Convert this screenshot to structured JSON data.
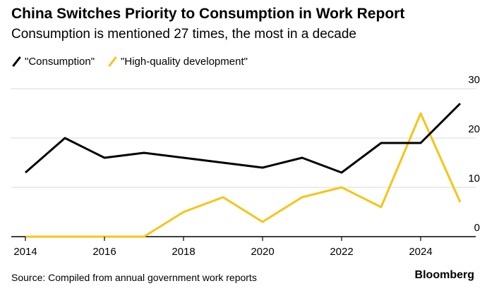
{
  "header": {
    "title": "China Switches Priority to Consumption in Work Report",
    "subtitle": "Consumption is mentioned 27 times, the most in a decade"
  },
  "footer": {
    "source": "Source: Compiled from annual government work reports",
    "brand": "Bloomberg"
  },
  "colors": {
    "series_consumption": "#000000",
    "series_hqd": "#f5c518",
    "grid": "#d9d9d9",
    "axis": "#000000"
  },
  "chart_data": {
    "type": "line",
    "title": "China Switches Priority to Consumption in Work Report",
    "subtitle": "Consumption is mentioned 27 times, the most in a decade",
    "xlabel": "",
    "ylabel": "",
    "x": [
      2014,
      2015,
      2016,
      2017,
      2018,
      2019,
      2020,
      2021,
      2022,
      2023,
      2024,
      2025
    ],
    "series": [
      {
        "name": "\"Consumption\"",
        "color": "#000000",
        "values": [
          13,
          20,
          16,
          17,
          16,
          15,
          14,
          16,
          13,
          19,
          19,
          27
        ]
      },
      {
        "name": "\"High-quality development\"",
        "color": "#f5c518",
        "values": [
          0,
          0,
          0,
          0,
          5,
          8,
          3,
          8,
          10,
          6,
          25,
          7
        ]
      }
    ],
    "xticks": [
      "2014",
      "2016",
      "2018",
      "2020",
      "2022",
      "2024"
    ],
    "yticks": [
      "0",
      "10",
      "20",
      "30"
    ],
    "ylim": [
      0,
      30
    ],
    "xlim": [
      2014,
      2025.5
    ],
    "legend": "top-left",
    "grid": true
  }
}
